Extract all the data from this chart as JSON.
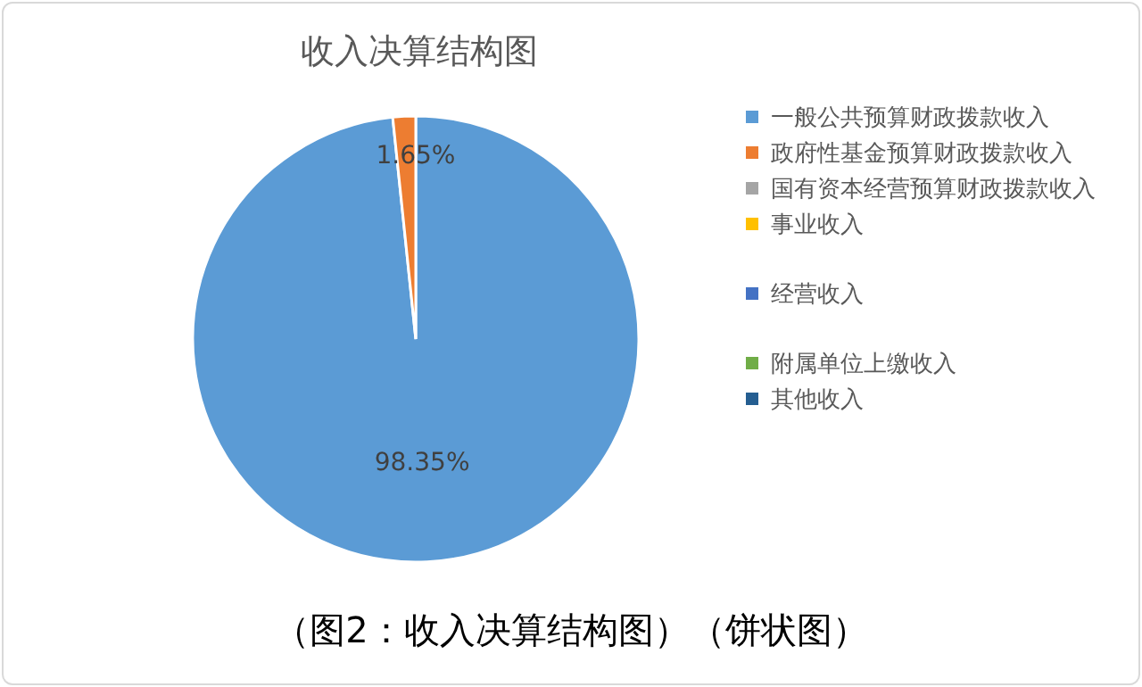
{
  "chart_data": {
    "type": "pie",
    "title": "收入决算结构图",
    "categories": [
      "一般公共预算财政拨款收入",
      "政府性基金预算财政拨款收入",
      "国有资本经营预算财政拨款收入",
      "事业收入",
      "经营收入",
      "附属单位上缴收入",
      "其他收入"
    ],
    "values": [
      98.35,
      1.65,
      0,
      0,
      0,
      0,
      0
    ],
    "colors": [
      "#5b9bd5",
      "#ed7d31",
      "#a5a5a5",
      "#ffc000",
      "#4472c4",
      "#70ad47",
      "#255e91"
    ],
    "value_labels": [
      "98.35%",
      "1.65%",
      null,
      null,
      null,
      null,
      null
    ],
    "legend": "right",
    "annotations": [
      "（图2：收入决算结构图）（饼状图）"
    ]
  }
}
